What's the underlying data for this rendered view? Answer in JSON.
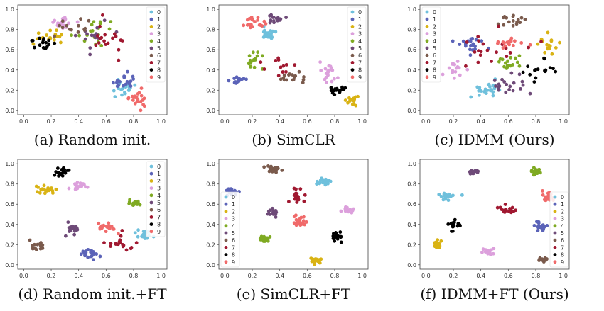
{
  "colors": [
    "#6fc0dc",
    "#5b63b8",
    "#d9b314",
    "#dca0dc",
    "#7faa22",
    "#6e4a78",
    "#7a5a4c",
    "#a01830",
    "#000000",
    "#f06a6a"
  ],
  "legend_labels": [
    "0",
    "1",
    "2",
    "3",
    "4",
    "5",
    "6",
    "7",
    "8",
    "9"
  ],
  "chart_data": [
    {
      "type": "scatter",
      "caption": "(a) Random init.",
      "xlim": [
        0,
        1
      ],
      "ylim": [
        0,
        1
      ],
      "xticks": [
        "0.0",
        "0.2",
        "0.4",
        "0.6",
        "0.8",
        "1.0"
      ],
      "yticks": [
        "0.0",
        "0.2",
        "0.4",
        "0.6",
        "0.8",
        "1.0"
      ],
      "legend": "top-right",
      "clusters": [
        {
          "c": 0,
          "x": 0.72,
          "y": 0.22,
          "sx": 0.08,
          "sy": 0.08,
          "n": 22
        },
        {
          "c": 1,
          "x": 0.73,
          "y": 0.28,
          "sx": 0.09,
          "sy": 0.07,
          "n": 18
        },
        {
          "c": 2,
          "x": 0.19,
          "y": 0.74,
          "sx": 0.1,
          "sy": 0.05,
          "n": 16
        },
        {
          "c": 3,
          "x": 0.28,
          "y": 0.87,
          "sx": 0.08,
          "sy": 0.06,
          "n": 18
        },
        {
          "c": 4,
          "x": 0.52,
          "y": 0.8,
          "sx": 0.14,
          "sy": 0.1,
          "n": 18
        },
        {
          "c": 5,
          "x": 0.55,
          "y": 0.72,
          "sx": 0.12,
          "sy": 0.14,
          "n": 16
        },
        {
          "c": 6,
          "x": 0.38,
          "y": 0.82,
          "sx": 0.1,
          "sy": 0.07,
          "n": 14
        },
        {
          "c": 7,
          "x": 0.62,
          "y": 0.68,
          "sx": 0.14,
          "sy": 0.16,
          "n": 18
        },
        {
          "c": 8,
          "x": 0.13,
          "y": 0.68,
          "sx": 0.08,
          "sy": 0.04,
          "n": 16
        },
        {
          "c": 9,
          "x": 0.82,
          "y": 0.12,
          "sx": 0.06,
          "sy": 0.07,
          "n": 20
        }
      ]
    },
    {
      "type": "scatter",
      "caption": "(b) SimCLR",
      "xlim": [
        0,
        1
      ],
      "ylim": [
        0,
        1
      ],
      "xticks": [
        "0.0",
        "0.2",
        "0.4",
        "0.6",
        "0.8",
        "1.0"
      ],
      "yticks": [
        "0.0",
        "0.2",
        "0.4",
        "0.6",
        "0.8",
        "1.0"
      ],
      "legend": "top-right",
      "clusters": [
        {
          "c": 0,
          "x": 0.32,
          "y": 0.76,
          "sx": 0.05,
          "sy": 0.06,
          "n": 20
        },
        {
          "c": 1,
          "x": 0.1,
          "y": 0.3,
          "sx": 0.05,
          "sy": 0.04,
          "n": 18
        },
        {
          "c": 2,
          "x": 0.93,
          "y": 0.1,
          "sx": 0.04,
          "sy": 0.05,
          "n": 16
        },
        {
          "c": 3,
          "x": 0.75,
          "y": 0.35,
          "sx": 0.07,
          "sy": 0.1,
          "n": 18
        },
        {
          "c": 4,
          "x": 0.22,
          "y": 0.48,
          "sx": 0.05,
          "sy": 0.06,
          "n": 18
        },
        {
          "c": 5,
          "x": 0.36,
          "y": 0.9,
          "sx": 0.06,
          "sy": 0.05,
          "n": 16
        },
        {
          "c": 6,
          "x": 0.5,
          "y": 0.32,
          "sx": 0.08,
          "sy": 0.05,
          "n": 16
        },
        {
          "c": 7,
          "x": 0.4,
          "y": 0.42,
          "sx": 0.1,
          "sy": 0.08,
          "n": 12
        },
        {
          "c": 8,
          "x": 0.82,
          "y": 0.2,
          "sx": 0.05,
          "sy": 0.04,
          "n": 18
        },
        {
          "c": 9,
          "x": 0.24,
          "y": 0.87,
          "sx": 0.07,
          "sy": 0.05,
          "n": 20
        }
      ]
    },
    {
      "type": "scatter",
      "caption": "(c) IDMM (Ours)",
      "xlim": [
        0,
        1
      ],
      "ylim": [
        0,
        1
      ],
      "xticks": [
        "0.0",
        "0.2",
        "0.4",
        "0.6",
        "0.8",
        "1.0"
      ],
      "yticks": [
        "0.0",
        "0.2",
        "0.4",
        "0.6",
        "0.8",
        "1.0"
      ],
      "legend": "top-left",
      "clusters": [
        {
          "c": 0,
          "x": 0.45,
          "y": 0.2,
          "sx": 0.08,
          "sy": 0.07,
          "n": 24
        },
        {
          "c": 1,
          "x": 0.3,
          "y": 0.65,
          "sx": 0.09,
          "sy": 0.06,
          "n": 20
        },
        {
          "c": 2,
          "x": 0.88,
          "y": 0.64,
          "sx": 0.06,
          "sy": 0.08,
          "n": 16
        },
        {
          "c": 3,
          "x": 0.2,
          "y": 0.4,
          "sx": 0.07,
          "sy": 0.07,
          "n": 16
        },
        {
          "c": 4,
          "x": 0.6,
          "y": 0.48,
          "sx": 0.06,
          "sy": 0.06,
          "n": 18
        },
        {
          "c": 5,
          "x": 0.6,
          "y": 0.25,
          "sx": 0.1,
          "sy": 0.1,
          "n": 20
        },
        {
          "c": 6,
          "x": 0.62,
          "y": 0.88,
          "sx": 0.1,
          "sy": 0.06,
          "n": 16
        },
        {
          "c": 7,
          "x": 0.5,
          "y": 0.58,
          "sx": 0.2,
          "sy": 0.14,
          "n": 20
        },
        {
          "c": 8,
          "x": 0.82,
          "y": 0.38,
          "sx": 0.1,
          "sy": 0.12,
          "n": 16
        },
        {
          "c": 9,
          "x": 0.6,
          "y": 0.66,
          "sx": 0.09,
          "sy": 0.06,
          "n": 20
        }
      ]
    },
    {
      "type": "scatter",
      "caption": "(d) Random init.+FT",
      "xlim": [
        0,
        1
      ],
      "ylim": [
        0,
        1
      ],
      "xticks": [
        "0.0",
        "0.2",
        "0.4",
        "0.6",
        "0.8",
        "1.0"
      ],
      "yticks": [
        "0.0",
        "0.2",
        "0.4",
        "0.6",
        "0.8",
        "1.0"
      ],
      "legend": "top-right",
      "clusters": [
        {
          "c": 0,
          "x": 0.88,
          "y": 0.3,
          "sx": 0.05,
          "sy": 0.04,
          "n": 20
        },
        {
          "c": 1,
          "x": 0.48,
          "y": 0.1,
          "sx": 0.07,
          "sy": 0.04,
          "n": 20
        },
        {
          "c": 2,
          "x": 0.15,
          "y": 0.74,
          "sx": 0.07,
          "sy": 0.04,
          "n": 20
        },
        {
          "c": 3,
          "x": 0.4,
          "y": 0.78,
          "sx": 0.06,
          "sy": 0.04,
          "n": 18
        },
        {
          "c": 4,
          "x": 0.82,
          "y": 0.6,
          "sx": 0.04,
          "sy": 0.03,
          "n": 16
        },
        {
          "c": 5,
          "x": 0.36,
          "y": 0.36,
          "sx": 0.05,
          "sy": 0.04,
          "n": 18
        },
        {
          "c": 6,
          "x": 0.1,
          "y": 0.18,
          "sx": 0.05,
          "sy": 0.04,
          "n": 18
        },
        {
          "c": 7,
          "x": 0.7,
          "y": 0.22,
          "sx": 0.07,
          "sy": 0.08,
          "n": 20
        },
        {
          "c": 8,
          "x": 0.28,
          "y": 0.92,
          "sx": 0.06,
          "sy": 0.04,
          "n": 20
        },
        {
          "c": 9,
          "x": 0.6,
          "y": 0.38,
          "sx": 0.06,
          "sy": 0.05,
          "n": 20
        }
      ]
    },
    {
      "type": "scatter",
      "caption": "(e) SimCLR+FT",
      "xlim": [
        0,
        1
      ],
      "ylim": [
        0,
        1
      ],
      "xticks": [
        "0.0",
        "0.2",
        "0.4",
        "0.6",
        "0.8",
        "1.0"
      ],
      "yticks": [
        "0.0",
        "0.2",
        "0.4",
        "0.6",
        "0.8",
        "1.0"
      ],
      "legend": "bottom-left",
      "clusters": [
        {
          "c": 0,
          "x": 0.72,
          "y": 0.82,
          "sx": 0.04,
          "sy": 0.03,
          "n": 20
        },
        {
          "c": 1,
          "x": 0.05,
          "y": 0.72,
          "sx": 0.04,
          "sy": 0.03,
          "n": 18
        },
        {
          "c": 2,
          "x": 0.66,
          "y": 0.05,
          "sx": 0.03,
          "sy": 0.03,
          "n": 18
        },
        {
          "c": 3,
          "x": 0.9,
          "y": 0.55,
          "sx": 0.04,
          "sy": 0.03,
          "n": 20
        },
        {
          "c": 4,
          "x": 0.3,
          "y": 0.25,
          "sx": 0.04,
          "sy": 0.03,
          "n": 20
        },
        {
          "c": 5,
          "x": 0.35,
          "y": 0.52,
          "sx": 0.04,
          "sy": 0.04,
          "n": 18
        },
        {
          "c": 6,
          "x": 0.35,
          "y": 0.95,
          "sx": 0.05,
          "sy": 0.03,
          "n": 20
        },
        {
          "c": 7,
          "x": 0.53,
          "y": 0.68,
          "sx": 0.04,
          "sy": 0.06,
          "n": 20
        },
        {
          "c": 8,
          "x": 0.82,
          "y": 0.28,
          "sx": 0.04,
          "sy": 0.04,
          "n": 20
        },
        {
          "c": 9,
          "x": 0.55,
          "y": 0.43,
          "sx": 0.04,
          "sy": 0.04,
          "n": 20
        }
      ]
    },
    {
      "type": "scatter",
      "caption": "(f) IDMM+FT (Ours)",
      "xlim": [
        0,
        1
      ],
      "ylim": [
        0,
        1
      ],
      "xticks": [
        "0.0",
        "0.2",
        "0.4",
        "0.6",
        "0.8",
        "1.0"
      ],
      "yticks": [
        "0.0",
        "0.2",
        "0.4",
        "0.6",
        "0.8",
        "1.0"
      ],
      "legend": "bottom-right",
      "clusters": [
        {
          "c": 0,
          "x": 0.15,
          "y": 0.68,
          "sx": 0.05,
          "sy": 0.03,
          "n": 20
        },
        {
          "c": 1,
          "x": 0.83,
          "y": 0.38,
          "sx": 0.04,
          "sy": 0.03,
          "n": 18
        },
        {
          "c": 2,
          "x": 0.08,
          "y": 0.2,
          "sx": 0.03,
          "sy": 0.03,
          "n": 20
        },
        {
          "c": 3,
          "x": 0.45,
          "y": 0.13,
          "sx": 0.04,
          "sy": 0.03,
          "n": 18
        },
        {
          "c": 4,
          "x": 0.8,
          "y": 0.92,
          "sx": 0.03,
          "sy": 0.03,
          "n": 20
        },
        {
          "c": 5,
          "x": 0.35,
          "y": 0.92,
          "sx": 0.04,
          "sy": 0.02,
          "n": 18
        },
        {
          "c": 6,
          "x": 0.85,
          "y": 0.05,
          "sx": 0.04,
          "sy": 0.02,
          "n": 16
        },
        {
          "c": 7,
          "x": 0.6,
          "y": 0.55,
          "sx": 0.04,
          "sy": 0.04,
          "n": 20
        },
        {
          "c": 8,
          "x": 0.2,
          "y": 0.4,
          "sx": 0.04,
          "sy": 0.04,
          "n": 18
        },
        {
          "c": 9,
          "x": 0.88,
          "y": 0.68,
          "sx": 0.04,
          "sy": 0.04,
          "n": 20
        }
      ]
    }
  ]
}
